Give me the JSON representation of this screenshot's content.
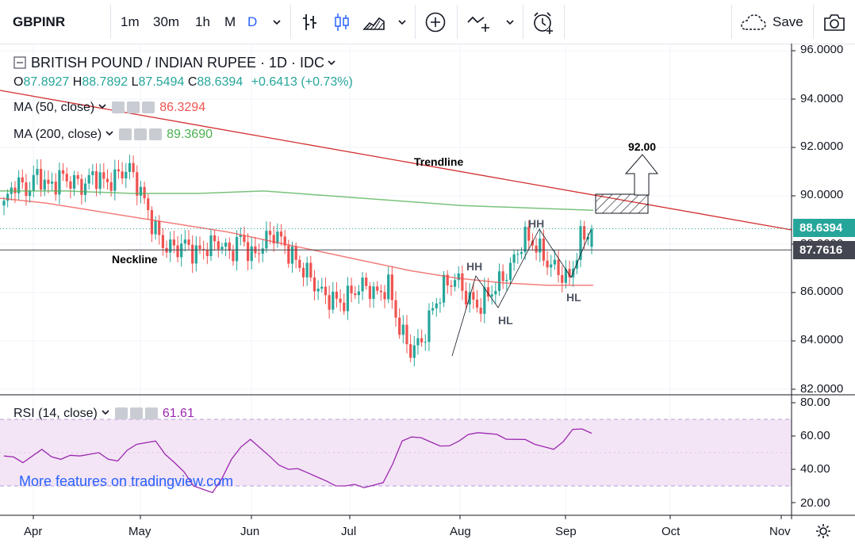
{
  "toolbar": {
    "symbol": "GBPINR",
    "intervals": [
      "1m",
      "30m",
      "1h",
      "M",
      "D"
    ],
    "active_interval": "D",
    "save_label": "Save"
  },
  "header": {
    "title": "BRITISH POUND / INDIAN RUPEE · 1D · IDC",
    "ohlc": {
      "o_label": "O",
      "o": "87.8927",
      "h_label": "H",
      "h": "88.7892",
      "l_label": "L",
      "l": "87.5494",
      "c_label": "C",
      "c": "88.6394",
      "change": "+0.6413 (+0.73%)"
    }
  },
  "indicators": {
    "ma50": {
      "label": "MA (50, close)",
      "value": "86.3294",
      "color": "#ef5350"
    },
    "ma200": {
      "label": "MA (200, close)",
      "value": "89.3690",
      "color": "#4caf50"
    },
    "rsi": {
      "label": "RSI (14, close)",
      "value": "61.61",
      "color": "#9c27b0"
    }
  },
  "price_axis": {
    "ticks": [
      "96.0000",
      "94.0000",
      "92.0000",
      "90.0000",
      "88.0000",
      "86.0000",
      "84.0000",
      "82.0000"
    ],
    "current_price": "88.6394",
    "neckline_price": "87.7616"
  },
  "rsi_axis": {
    "ticks": [
      "80.00",
      "60.00",
      "40.00",
      "20.00"
    ]
  },
  "time_axis": {
    "labels": [
      "Apr",
      "May",
      "Jun",
      "Jul",
      "Aug",
      "Sep",
      "Oct",
      "Nov"
    ]
  },
  "annotations": {
    "trendline": "Trendline",
    "neckline": "Neckline",
    "target": "92.00",
    "hh1": "HH",
    "hh2": "HH",
    "hl1": "HL",
    "hl2": "HL"
  },
  "watermark": "More features on tradingview.com",
  "colors": {
    "up": "#26a69a",
    "down": "#ef5350",
    "ma50": "#ef5350",
    "ma200": "#4caf50",
    "trend": "#d32f2f",
    "rsi": "#9c27b0",
    "rsi_band": "#f3e5f5"
  },
  "chart_data": {
    "type": "candlestick",
    "title": "BRITISH POUND / INDIAN RUPEE · 1D · IDC",
    "ylim": [
      82,
      96
    ],
    "x": [
      "Apr",
      "May",
      "Jun",
      "Jul",
      "Aug",
      "Sep",
      "Oct",
      "Nov"
    ],
    "close_path": [
      89.6,
      90.6,
      90.2,
      90.9,
      90.3,
      90.8,
      90.6,
      90.4,
      90.9,
      90.5,
      90.8,
      91.2,
      90.3,
      89.0,
      88.0,
      87.8,
      88.0,
      87.6,
      87.9,
      88.1,
      87.6,
      88.3,
      87.4,
      88.1,
      88.5,
      87.8,
      87.2,
      86.7,
      86.0,
      85.7,
      85.6,
      86.1,
      86.3,
      85.9,
      86.3,
      84.5,
      83.6,
      84.0,
      85.4,
      86.3,
      86.6,
      85.8,
      85.4,
      86.0,
      86.5,
      87.2,
      88.3,
      88.0,
      87.3,
      86.9,
      86.5,
      88.2,
      88.6
    ],
    "ma50": [
      89.9,
      89.7,
      89.4,
      89.1,
      88.8,
      88.5,
      88.1,
      87.7,
      87.3,
      86.9,
      86.6,
      86.4,
      86.3,
      86.3
    ],
    "ma200": [
      90.2,
      90.2,
      90.1,
      90.1,
      90.2,
      90.0,
      89.8,
      89.6,
      89.5,
      89.4
    ],
    "rsi": [
      48,
      44,
      52,
      46,
      48,
      50,
      45,
      55,
      57,
      44,
      30,
      26,
      46,
      58,
      48,
      40,
      38,
      33,
      30,
      29,
      32,
      57,
      59,
      54,
      57,
      62,
      61,
      58,
      55,
      52,
      64,
      61.61
    ],
    "rsi_levels": [
      70,
      30
    ]
  }
}
